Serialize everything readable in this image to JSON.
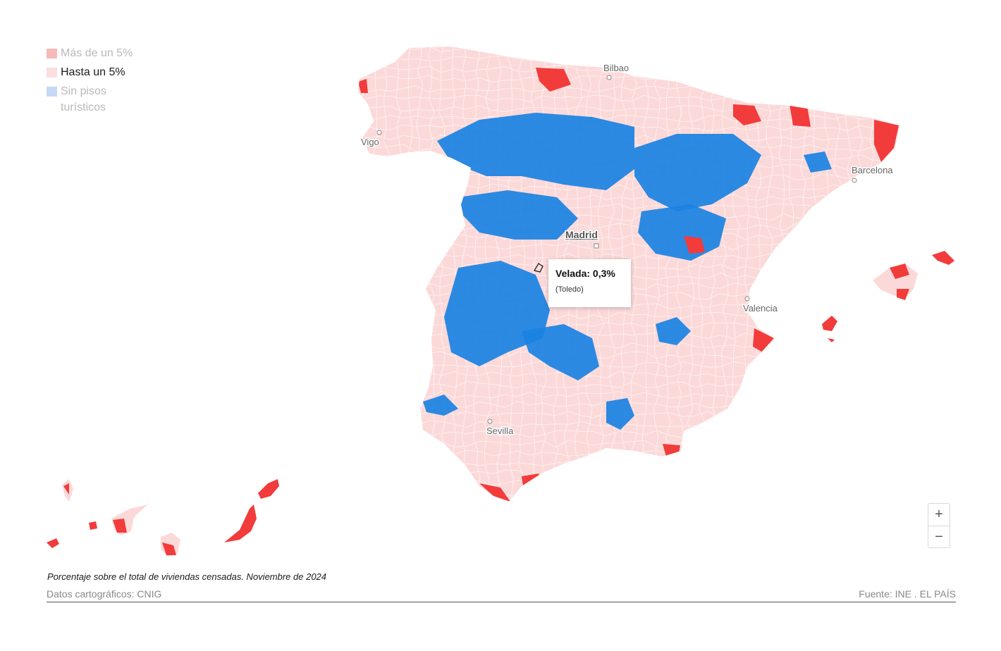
{
  "legend": {
    "items": [
      {
        "label": "Más de un 5%",
        "color": "#f7b9b9",
        "state": "dim"
      },
      {
        "label": "Hasta un 5%",
        "color": "#fcdede",
        "state": "on"
      },
      {
        "label": "Sin pisos turísticos",
        "color": "#c6d9f4",
        "state": "dim"
      }
    ]
  },
  "map": {
    "colors": {
      "land": "#fcd9d9",
      "high": "#f23b3b",
      "none": "#1a82e2",
      "border": "#ffffff"
    },
    "cities": {
      "bilbao": "Bilbao",
      "vigo": "Vigo",
      "barcelona": "Barcelona",
      "madrid": "Madrid",
      "valencia": "Valencia",
      "sevilla": "Sevilla"
    }
  },
  "tooltip": {
    "title": "Velada: 0,3%",
    "subtitle": "(Toledo)"
  },
  "zoom": {
    "in": "+",
    "out": "−"
  },
  "footer": {
    "note": "Porcentaje sobre el total de viviendas censadas. Noviembre de 2024",
    "credit_left": "Datos cartográficos: CNIG",
    "credit_right": "Fuente: INE . EL PAÍS"
  }
}
